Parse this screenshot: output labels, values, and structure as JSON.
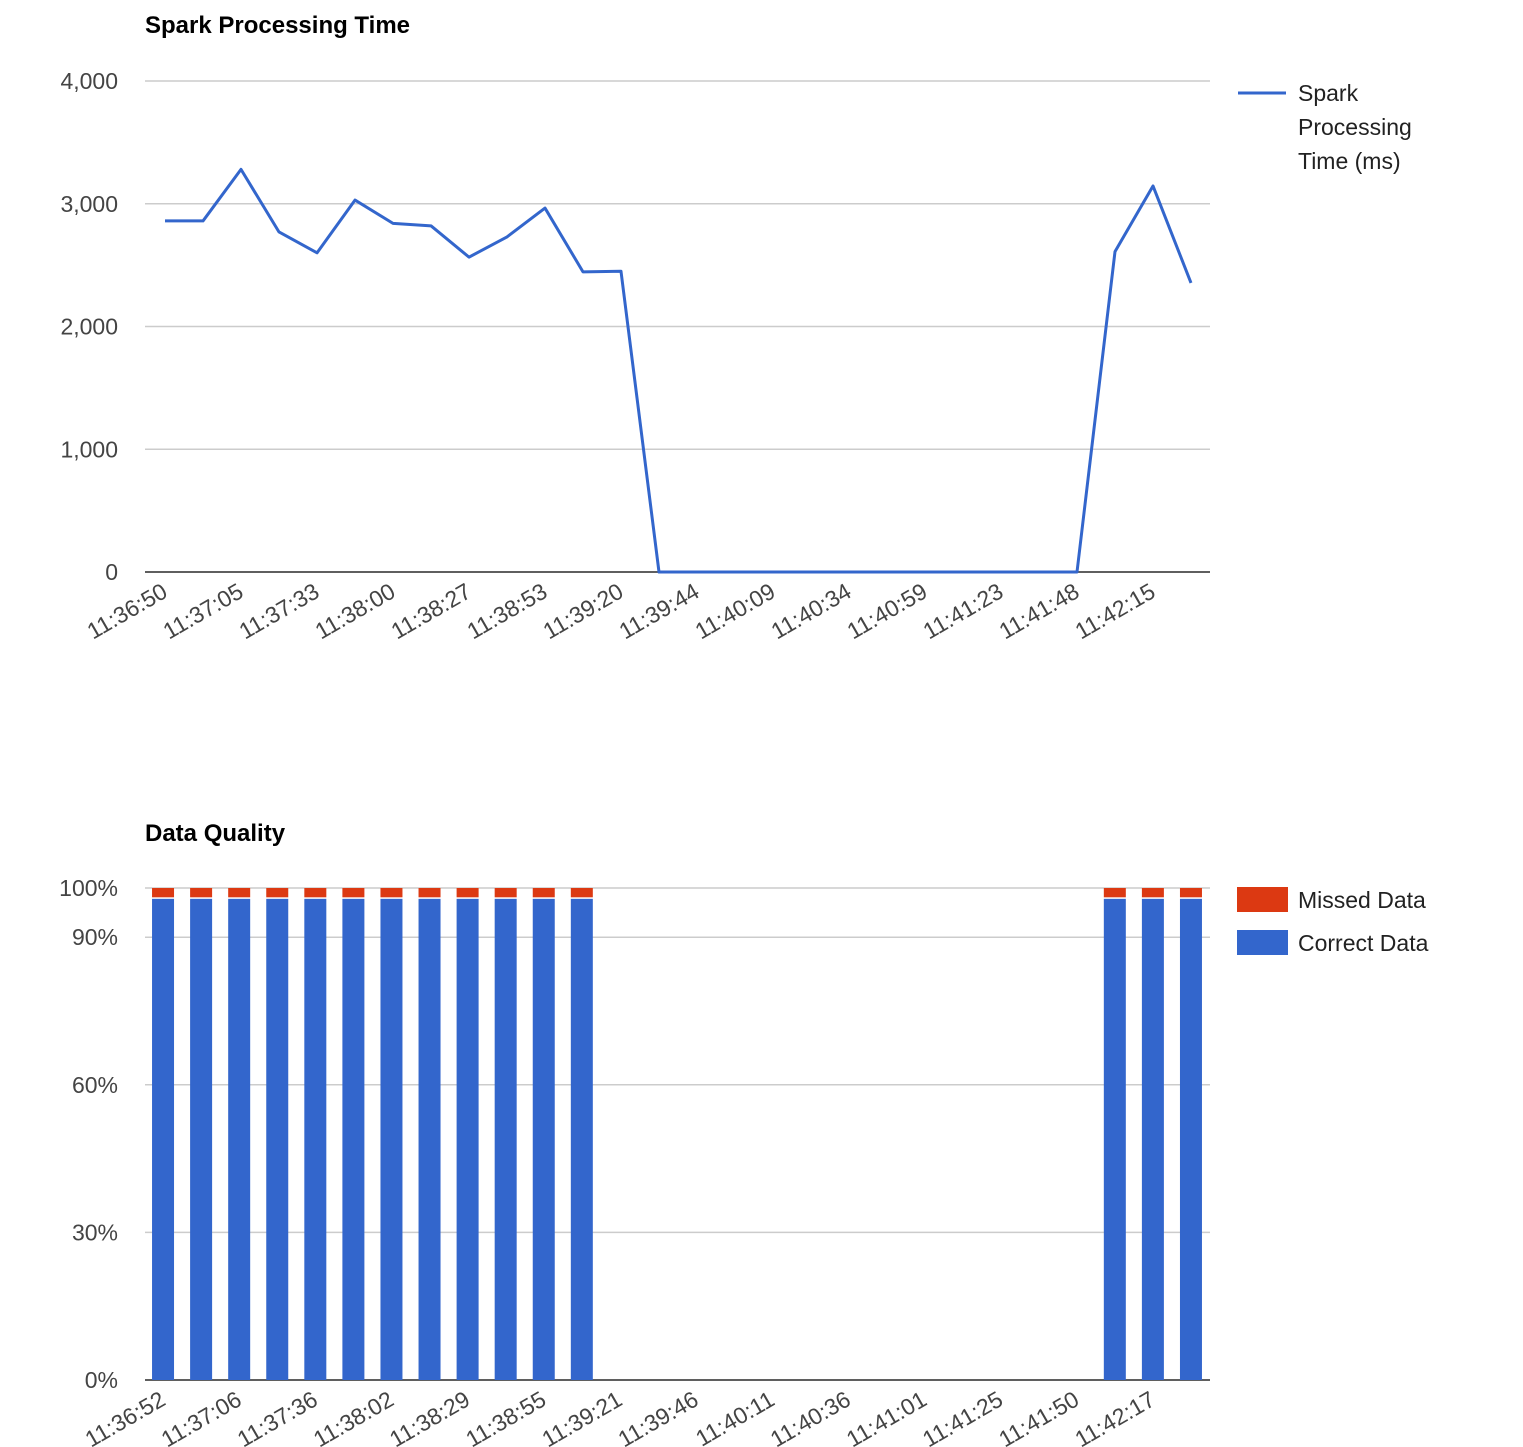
{
  "chart_data": [
    {
      "type": "line",
      "title": "Spark Processing Time",
      "categories": [
        "11:36:50",
        null,
        "11:37:05",
        null,
        "11:37:33",
        null,
        "11:38:00",
        null,
        "11:38:27",
        null,
        "11:38:53",
        null,
        "11:39:20",
        null,
        "11:39:44",
        null,
        "11:40:09",
        null,
        "11:40:34",
        null,
        "11:40:59",
        null,
        "11:41:23",
        null,
        "11:41:48",
        null,
        "11:42:15",
        null
      ],
      "series": [
        {
          "name": "Spark Processing Time (ms)",
          "color": "#3366cc",
          "values": [
            2860,
            2860,
            3280,
            2770,
            2600,
            3030,
            2840,
            2820,
            2565,
            2730,
            2965,
            2445,
            2450,
            0,
            0,
            0,
            0,
            0,
            0,
            0,
            0,
            0,
            0,
            0,
            0,
            2610,
            3145,
            2355
          ]
        }
      ],
      "ylim": [
        0,
        4000
      ],
      "yticks": [
        0,
        {
          "value": 1000,
          "label": "1,000"
        },
        {
          "value": 2000,
          "label": "2,000"
        },
        {
          "value": 3000,
          "label": "3,000"
        },
        {
          "value": 4000,
          "label": "4,000"
        }
      ],
      "grid": true,
      "legend": "right"
    },
    {
      "type": "stacked_bar",
      "title": "Data Quality",
      "categories": [
        "11:36:52",
        null,
        "11:37:06",
        null,
        "11:37:36",
        null,
        "11:38:02",
        null,
        "11:38:29",
        null,
        "11:38:55",
        null,
        "11:39:21",
        null,
        "11:39:46",
        null,
        "11:40:11",
        null,
        "11:40:36",
        null,
        "11:41:01",
        null,
        "11:41:25",
        null,
        "11:41:50",
        null,
        "11:42:17",
        null
      ],
      "series": [
        {
          "name": "Correct Data",
          "color": "#3366cc",
          "values": [
            97.8,
            97.8,
            97.8,
            97.8,
            97.8,
            97.8,
            97.8,
            97.8,
            97.8,
            97.8,
            97.8,
            97.8,
            0,
            0,
            0,
            0,
            0,
            0,
            0,
            0,
            0,
            0,
            0,
            0,
            0,
            97.8,
            97.8,
            97.8
          ]
        },
        {
          "name": "Missed Data",
          "color": "#dc3912",
          "values": [
            2.2,
            2.2,
            2.2,
            2.2,
            2.2,
            2.2,
            2.2,
            2.2,
            2.2,
            2.2,
            2.2,
            2.2,
            0,
            0,
            0,
            0,
            0,
            0,
            0,
            0,
            0,
            0,
            0,
            0,
            0,
            2.2,
            2.2,
            2.2
          ]
        }
      ],
      "ylim": [
        0,
        100
      ],
      "yticks": [
        {
          "value": 0,
          "label": "0%"
        },
        {
          "value": 30,
          "label": "30%"
        },
        {
          "value": 60,
          "label": "60%"
        },
        {
          "value": 90,
          "label": "90%"
        },
        {
          "value": 100,
          "label": "100%"
        }
      ],
      "grid": true,
      "legend": "right"
    }
  ]
}
